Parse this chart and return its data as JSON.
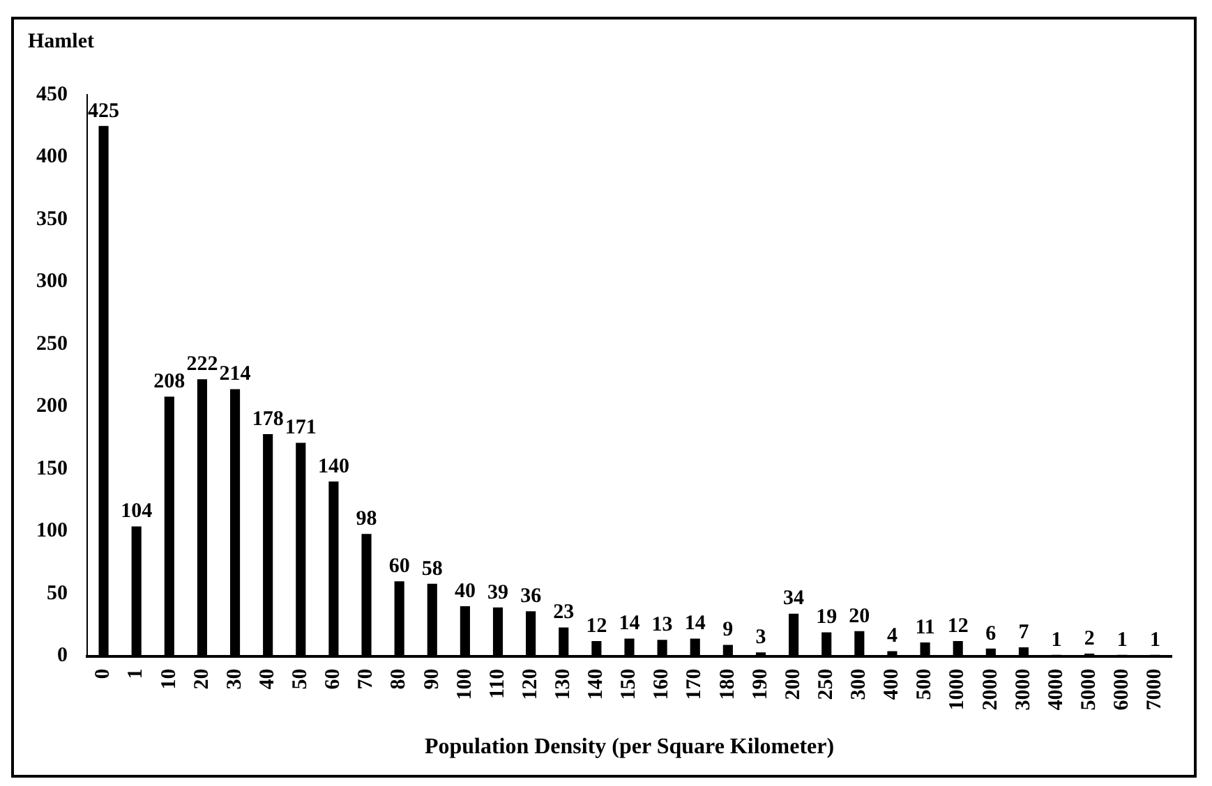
{
  "chart_data": {
    "type": "bar",
    "ylabel": "Hamlet",
    "xlabel": "Population Density (per Square Kilometer)",
    "categories": [
      "0",
      "1",
      "10",
      "20",
      "30",
      "40",
      "50",
      "60",
      "70",
      "80",
      "90",
      "100",
      "110",
      "120",
      "130",
      "140",
      "150",
      "160",
      "170",
      "180",
      "190",
      "200",
      "250",
      "300",
      "400",
      "500",
      "1000",
      "2000",
      "3000",
      "4000",
      "5000",
      "6000",
      "7000"
    ],
    "values": [
      425,
      104,
      208,
      222,
      214,
      178,
      171,
      140,
      98,
      60,
      58,
      40,
      39,
      36,
      23,
      12,
      14,
      13,
      14,
      9,
      3,
      34,
      19,
      20,
      4,
      11,
      12,
      6,
      7,
      1,
      2,
      1,
      1
    ],
    "color": "#000000",
    "ylim": [
      0,
      450
    ],
    "yticks": [
      0,
      50,
      100,
      150,
      200,
      250,
      300,
      350,
      400,
      450
    ],
    "grid": false,
    "legend": false,
    "data_labels": true
  }
}
